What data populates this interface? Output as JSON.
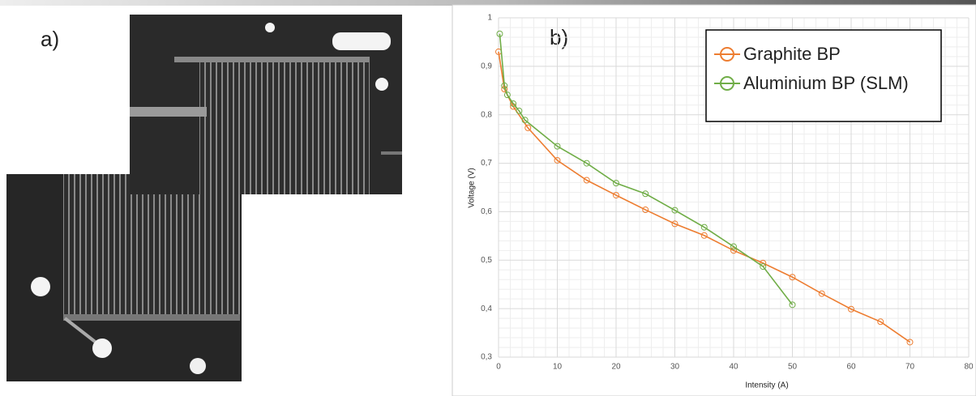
{
  "photo_label": "a)",
  "chart_data": {
    "type": "line",
    "annotation": "b)",
    "x_label": "Intensity (A)",
    "y_label": "Voltage (V)",
    "xlim": [
      0,
      80
    ],
    "xticks": [
      0,
      10,
      20,
      30,
      40,
      50,
      60,
      70,
      80
    ],
    "ylim": [
      0.3,
      1
    ],
    "yticks": [
      {
        "value": 0.3,
        "label": "0,3"
      },
      {
        "value": 0.4,
        "label": "0,4"
      },
      {
        "value": 0.5,
        "label": "0,5"
      },
      {
        "value": 0.6,
        "label": "0,6"
      },
      {
        "value": 0.7,
        "label": "0,7"
      },
      {
        "value": 0.8,
        "label": "0,8"
      },
      {
        "value": 0.9,
        "label": "0,9"
      },
      1
    ],
    "grid": true,
    "minor_grid": true,
    "legend": "upper right",
    "series": [
      {
        "name": "Graphite BP",
        "color": "#ed7d31",
        "x": [
          0,
          1,
          2.5,
          5,
          10,
          15,
          20,
          25,
          30,
          35,
          40,
          45,
          50,
          55,
          60,
          65,
          70
        ],
        "values": [
          0.93,
          0.853,
          0.817,
          0.773,
          0.706,
          0.665,
          0.634,
          0.604,
          0.575,
          0.551,
          0.52,
          0.494,
          0.465,
          0.431,
          0.399,
          0.373,
          0.331
        ]
      },
      {
        "name": "Aluminium BP (SLM)",
        "color": "#70ad47",
        "x": [
          0.2,
          1,
          1.5,
          2.5,
          3.5,
          4.5,
          10,
          15,
          20,
          25,
          30,
          35,
          40,
          45,
          50
        ],
        "values": [
          0.967,
          0.86,
          0.841,
          0.823,
          0.808,
          0.789,
          0.735,
          0.7,
          0.659,
          0.637,
          0.603,
          0.568,
          0.528,
          0.487,
          0.408
        ]
      }
    ]
  }
}
